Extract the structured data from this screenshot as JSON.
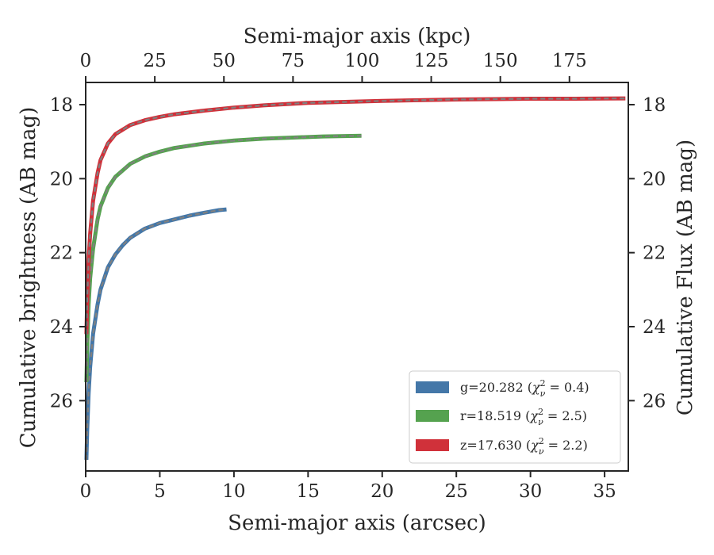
{
  "chart_data": {
    "type": "line",
    "xlabel": "Semi-major axis (arcsec)",
    "ylabel": "Cumulative brightness (AB mag)",
    "top_xlabel": "Semi-major axis (kpc)",
    "right_ylabel": "Cumulative Flux (AB mag)",
    "xlim": [
      0,
      36.6
    ],
    "ylim": [
      27.9,
      17.4
    ],
    "y_inverted": true,
    "x_ticks": [
      0,
      5,
      10,
      15,
      20,
      25,
      30,
      35
    ],
    "y_ticks": [
      18,
      20,
      22,
      24,
      26
    ],
    "top_x_ticks": [
      0,
      25,
      50,
      75,
      100,
      125,
      150,
      175
    ],
    "top_xlim": [
      0,
      196.3
    ],
    "legend_position": "lower-right",
    "grid": false,
    "series": [
      {
        "name": "g=20.282 ($\\chi^2_\\nu = 0.4$)",
        "label_main": "g=20.282 (",
        "label_chi": "χ",
        "label_sup": "2",
        "label_sub": "ν",
        "label_tail": " = 0.4)",
        "color": "#4477a8",
        "x": [
          0.05,
          0.1,
          0.2,
          0.3,
          0.5,
          0.8,
          1.0,
          1.5,
          2.0,
          2.5,
          3.0,
          4.0,
          5.0,
          6.0,
          7.0,
          8.0,
          9.0,
          9.5
        ],
        "y": [
          27.6,
          26.8,
          25.8,
          25.1,
          24.2,
          23.4,
          23.0,
          22.4,
          22.05,
          21.8,
          21.6,
          21.35,
          21.2,
          21.1,
          21.0,
          20.92,
          20.85,
          20.83
        ]
      },
      {
        "name": "r=18.519 ($\\chi^2_\\nu = 2.5$)",
        "label_main": "r=18.519 (",
        "label_chi": "χ",
        "label_sup": "2",
        "label_sub": "ν",
        "label_tail": " = 2.5)",
        "color": "#55a24f",
        "x": [
          0.05,
          0.1,
          0.2,
          0.3,
          0.5,
          0.8,
          1.0,
          1.5,
          2.0,
          3.0,
          4.0,
          5.0,
          6.0,
          8.0,
          10.0,
          12.0,
          14.0,
          16.0,
          18.6
        ],
        "y": [
          25.5,
          24.6,
          23.4,
          22.7,
          21.9,
          21.1,
          20.75,
          20.25,
          19.95,
          19.6,
          19.4,
          19.27,
          19.17,
          19.05,
          18.97,
          18.92,
          18.89,
          18.86,
          18.84
        ]
      },
      {
        "name": "z=17.630 ($\\chi^2_\\nu = 2.2$)",
        "label_main": "z=17.630 (",
        "label_chi": "χ",
        "label_sup": "2",
        "label_sub": "ν",
        "label_tail": " = 2.2)",
        "color": "#d0313a",
        "x": [
          0.05,
          0.1,
          0.2,
          0.3,
          0.5,
          0.8,
          1.0,
          1.5,
          2.0,
          3.0,
          4.0,
          5.0,
          6.0,
          8.0,
          10.0,
          12.0,
          15.0,
          18.0,
          20.0,
          25.0,
          30.0,
          33.0,
          36.4
        ],
        "y": [
          24.2,
          23.3,
          22.2,
          21.5,
          20.6,
          19.85,
          19.5,
          19.05,
          18.8,
          18.55,
          18.42,
          18.33,
          18.26,
          18.16,
          18.08,
          18.02,
          17.95,
          17.92,
          17.9,
          17.86,
          17.84,
          17.84,
          17.83
        ]
      }
    ]
  }
}
